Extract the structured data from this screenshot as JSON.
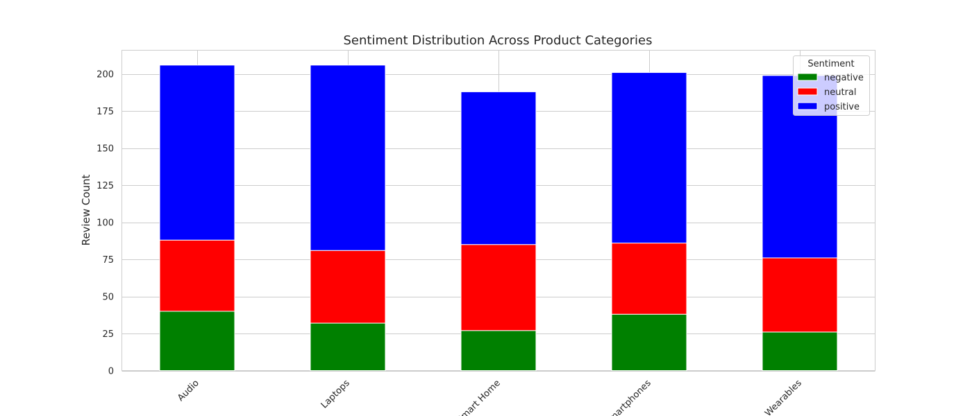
{
  "chart_data": {
    "type": "bar",
    "stacked": true,
    "title": "Sentiment Distribution Across Product Categories",
    "xlabel": "",
    "ylabel": "Review Count",
    "categories": [
      "Audio",
      "Laptops",
      "Smart Home",
      "Smartphones",
      "Wearables"
    ],
    "series": [
      {
        "name": "negative",
        "color": "#008000",
        "values": [
          40,
          32,
          27,
          38,
          26
        ]
      },
      {
        "name": "neutral",
        "color": "#ff0000",
        "values": [
          48,
          49,
          58,
          48,
          50
        ]
      },
      {
        "name": "positive",
        "color": "#0000ff",
        "values": [
          118,
          125,
          103,
          115,
          123
        ]
      }
    ],
    "ylim": [
      0,
      216
    ],
    "yticks": [
      0,
      25,
      50,
      75,
      100,
      125,
      150,
      175,
      200
    ],
    "grid": true,
    "legend": {
      "title": "Sentiment",
      "placement": "top-right"
    }
  }
}
